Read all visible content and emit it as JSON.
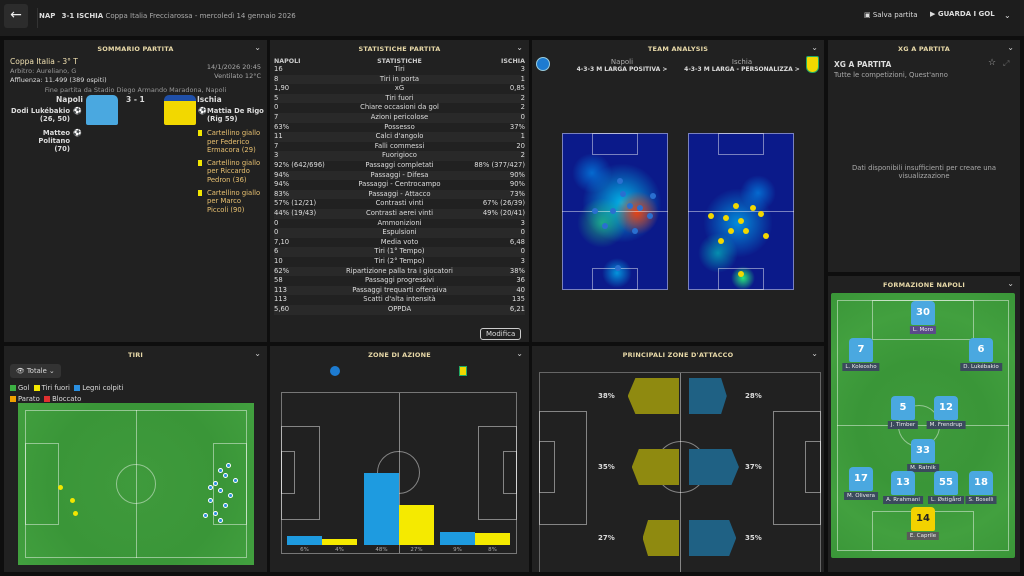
{
  "header": {
    "home_abbr": "NAP",
    "score": "3-1",
    "away_abbr": "ISCHIA",
    "competition": "Coppa Italia Frecciarossa",
    "date": "mercoledì 14 gennaio 2026",
    "save_label": "Salva partita",
    "watch_label": "GUARDA I GOL"
  },
  "summary": {
    "title": "SOMMARIO PARTITA",
    "competition": "Coppa Italia - 3° T",
    "referee": "Arbitro: Aureliano, G",
    "attendance": "Affluenza: 11.499 (389 ospiti)",
    "datetime": "14/1/2026 20:45",
    "weather": "Ventilato 12°C",
    "venue": "Fine partita da Stadio Diego Armando Maradona, Napoli",
    "home": "Napoli",
    "away": "Ischia",
    "score": "3 - 1",
    "home_events": [
      {
        "name": "Dodi Lukébakio",
        "detail": "(26, 50)"
      },
      {
        "name": "Matteo Politano",
        "detail": "(70)"
      }
    ],
    "away_goal": {
      "name": "Mattia De Rigo",
      "detail": "(Rig 59)"
    },
    "away_cards": [
      "Cartellino giallo per Federico Ermacora (29)",
      "Cartellino giallo per Riccardo Pedron (36)",
      "Cartellino giallo per Marco Piccoli (90)"
    ]
  },
  "stats": {
    "title": "STATISTICHE PARTITA",
    "col_home": "NAPOLI",
    "col_stat": "STATISTICHE",
    "col_away": "ISCHIA",
    "edit_label": "Modifica",
    "rows": [
      [
        "16",
        "Tiri",
        "3"
      ],
      [
        "8",
        "Tiri in porta",
        "1"
      ],
      [
        "1,90",
        "xG",
        "0,85"
      ],
      [
        "5",
        "Tiri fuori",
        "2"
      ],
      [
        "0",
        "Chiare occasioni da gol",
        "2"
      ],
      [
        "7",
        "Azioni pericolose",
        "0"
      ],
      [
        "63%",
        "Possesso",
        "37%"
      ],
      [
        "11",
        "Calci d'angolo",
        "1"
      ],
      [
        "7",
        "Falli commessi",
        "20"
      ],
      [
        "3",
        "Fuorigioco",
        "2"
      ],
      [
        "92% (642/696)",
        "Passaggi completati",
        "88% (377/427)"
      ],
      [
        "94%",
        "Passaggi - Difesa",
        "90%"
      ],
      [
        "94%",
        "Passaggi - Centrocampo",
        "90%"
      ],
      [
        "83%",
        "Passaggi - Attacco",
        "73%"
      ],
      [
        "57% (12/21)",
        "Contrasti vinti",
        "67% (26/39)"
      ],
      [
        "44% (19/43)",
        "Contrasti aerei vinti",
        "49% (20/41)"
      ],
      [
        "0",
        "Ammonizioni",
        "3"
      ],
      [
        "0",
        "Espulsioni",
        "0"
      ],
      [
        "7,10",
        "Media voto",
        "6,48"
      ],
      [
        "6",
        "Tiri (1° Tempo)",
        "0"
      ],
      [
        "10",
        "Tiri (2° Tempo)",
        "3"
      ],
      [
        "62%",
        "Ripartizione palla tra i giocatori",
        "38%"
      ],
      [
        "58",
        "Passaggi progressivi",
        "36"
      ],
      [
        "113",
        "Passaggi trequarti offensiva",
        "40"
      ],
      [
        "113",
        "Scatti d'alta intensità",
        "135"
      ],
      [
        "5,60",
        "OPPDA",
        "6,21"
      ]
    ]
  },
  "team_analysis": {
    "title": "TEAM ANALYSIS",
    "home": "Napoli",
    "home_tactic": "4-3-3 M LARGA POSITIVA >",
    "away": "Ischia",
    "away_tactic": "4-3-3 M LARGA - PERSONALIZZA >"
  },
  "xg": {
    "title": "XG A PARTITA",
    "subtitle": "XG A PARTITA",
    "filter": "Tutte le competizioni, Quest'anno",
    "empty": "Dati disponibili insufficienti per creare una visualizzazione"
  },
  "shots": {
    "title": "TIRI",
    "filter": "Totale",
    "legend": [
      {
        "label": "Gol",
        "color": "#3cb043"
      },
      {
        "label": "Tiri fuori",
        "color": "#f2e600"
      },
      {
        "label": "Legni colpiti",
        "color": "#2a8fe0"
      },
      {
        "label": "Parato",
        "color": "#f0a000"
      },
      {
        "label": "Bloccato",
        "color": "#e03030"
      }
    ]
  },
  "zones": {
    "title": "ZONE DI AZIONE",
    "colors": {
      "home": "#1e9be0",
      "away": "#f5ea00"
    },
    "values": [
      {
        "home": 6,
        "away": 4,
        "home_label": "6%",
        "away_label": "4%"
      },
      {
        "home": 48,
        "away": 27,
        "home_label": "48%",
        "away_label": "27%"
      },
      {
        "home": 9,
        "away": 8,
        "home_label": "9%",
        "away_label": "8%"
      }
    ]
  },
  "attack": {
    "title": "PRINCIPALI ZONE D'ATTACCO",
    "left": [
      {
        "value": 38,
        "label": "38%"
      },
      {
        "value": 35,
        "label": "35%"
      },
      {
        "value": 27,
        "label": "27%"
      }
    ],
    "right": [
      {
        "value": 28,
        "label": "28%"
      },
      {
        "value": 37,
        "label": "37%"
      },
      {
        "value": 35,
        "label": "35%"
      }
    ],
    "colors": {
      "left": "#8f8a10",
      "right": "#1f6184"
    }
  },
  "formation": {
    "title": "FORMAZIONE NAPOLI",
    "players": [
      {
        "num": "30",
        "name": "L. Moro"
      },
      {
        "num": "7",
        "name": "L. Koleosho"
      },
      {
        "num": "6",
        "name": "D. Lukébakio"
      },
      {
        "num": "5",
        "name": "J. Timber"
      },
      {
        "num": "12",
        "name": "M. Frendrup"
      },
      {
        "num": "33",
        "name": "M. Ratnik"
      },
      {
        "num": "17",
        "name": "M. Olivera"
      },
      {
        "num": "13",
        "name": "A. Rrahmani"
      },
      {
        "num": "55",
        "name": "L. Østigård"
      },
      {
        "num": "18",
        "name": "S. Boselli"
      },
      {
        "num": "14",
        "name": "E. Caprile"
      }
    ]
  }
}
